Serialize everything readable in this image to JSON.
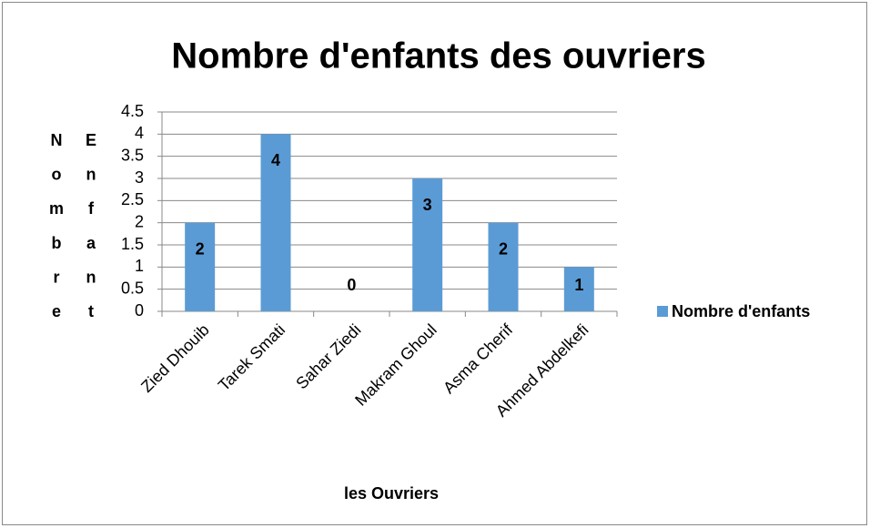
{
  "chart_data": {
    "type": "bar",
    "title": "Nombre d'enfants des ouvriers",
    "categories": [
      "Zied Dhouib",
      "Tarek Smati",
      "Sahar Ziedi",
      "Makram Ghoul",
      "Asma Cherif",
      "Ahmed Abdelkefi"
    ],
    "series": [
      {
        "name": "Nombre d'enfants",
        "color": "#5b9bd5",
        "values": [
          2,
          4,
          0,
          3,
          2,
          1
        ]
      }
    ],
    "ylim": [
      0,
      4.5
    ],
    "yticks": [
      0,
      0.5,
      1,
      1.5,
      2,
      2.5,
      3,
      3.5,
      4,
      4.5
    ],
    "grid": true,
    "x_label": "les Ouvriers",
    "y_label": "Nombre Enfant",
    "legend": "right"
  }
}
